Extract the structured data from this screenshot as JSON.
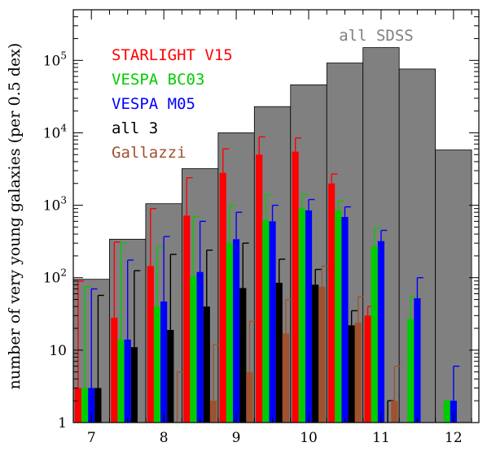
{
  "chart_data": {
    "type": "bar",
    "title": "",
    "xlabel": "",
    "ylabel": "number of very young galaxies (per 0.5 dex)",
    "yscale": "log",
    "ylim": [
      1,
      500000
    ],
    "xlim": [
      6.75,
      12.35
    ],
    "grid": false,
    "legend_position": "top-left",
    "x_ticks": [
      {
        "value": 7,
        "label": "7"
      },
      {
        "value": 8,
        "label": "8"
      },
      {
        "value": 9,
        "label": "9"
      },
      {
        "value": 10,
        "label": "10"
      },
      {
        "value": 11,
        "label": "11"
      },
      {
        "value": 12,
        "label": "12"
      }
    ],
    "y_ticks": [
      {
        "value": 1,
        "base": "1",
        "exp": ""
      },
      {
        "value": 10,
        "base": "10",
        "exp": ""
      },
      {
        "value": 100,
        "base": "10",
        "exp": "2"
      },
      {
        "value": 1000,
        "base": "10",
        "exp": "3"
      },
      {
        "value": 10000,
        "base": "10",
        "exp": "4"
      },
      {
        "value": 100000,
        "base": "10",
        "exp": "5"
      }
    ],
    "bins": [
      {
        "lo": 6.75,
        "hi": 7.25
      },
      {
        "lo": 7.25,
        "hi": 7.75
      },
      {
        "lo": 7.75,
        "hi": 8.25
      },
      {
        "lo": 8.25,
        "hi": 8.75
      },
      {
        "lo": 8.75,
        "hi": 9.25
      },
      {
        "lo": 9.25,
        "hi": 9.75
      },
      {
        "lo": 9.75,
        "hi": 10.25
      },
      {
        "lo": 10.25,
        "hi": 10.75
      },
      {
        "lo": 10.75,
        "hi": 11.25
      },
      {
        "lo": 11.25,
        "hi": 11.75
      },
      {
        "lo": 11.75,
        "hi": 12.25
      }
    ],
    "background_series": {
      "name": "all SDSS",
      "color": "#808080",
      "values": [
        95,
        340,
        1050,
        3200,
        10000,
        23000,
        46000,
        92000,
        150000,
        76000,
        5800
      ]
    },
    "series": [
      {
        "name": "STARLIGHT V15",
        "color": "#ff0000",
        "values": [
          3,
          28,
          145,
          720,
          2800,
          5000,
          5500,
          2000,
          30,
          null,
          null
        ],
        "err_upper": [
          90,
          310,
          900,
          2400,
          6000,
          8800,
          8500,
          2700,
          40,
          null,
          null
        ]
      },
      {
        "name": "VESPA BC03",
        "color": "#00cc00",
        "values": [
          3,
          14,
          40,
          105,
          300,
          620,
          900,
          850,
          270,
          27,
          2
        ],
        "err_upper": [
          75,
          300,
          270,
          700,
          1000,
          1400,
          1400,
          1150,
          480,
          55,
          2
        ]
      },
      {
        "name": "VESPA M05",
        "color": "#0000ff",
        "values": [
          3,
          14,
          47,
          120,
          340,
          600,
          850,
          690,
          320,
          52,
          2
        ],
        "err_upper": [
          70,
          175,
          370,
          600,
          800,
          1000,
          1200,
          950,
          450,
          100,
          6
        ]
      },
      {
        "name": "all 3",
        "color": "#000000",
        "values": [
          3,
          11,
          19,
          40,
          72,
          85,
          80,
          22,
          null,
          null,
          null
        ],
        "err_upper": [
          57,
          125,
          210,
          240,
          300,
          180,
          130,
          35,
          2,
          null,
          null
        ]
      },
      {
        "name": "Gallazzi",
        "color": "#a0522d",
        "values": [
          null,
          null,
          null,
          2,
          5,
          17,
          75,
          24,
          2,
          null,
          null
        ],
        "err_upper": [
          null,
          null,
          5,
          12,
          25,
          50,
          145,
          55,
          6,
          null,
          null
        ]
      }
    ]
  }
}
